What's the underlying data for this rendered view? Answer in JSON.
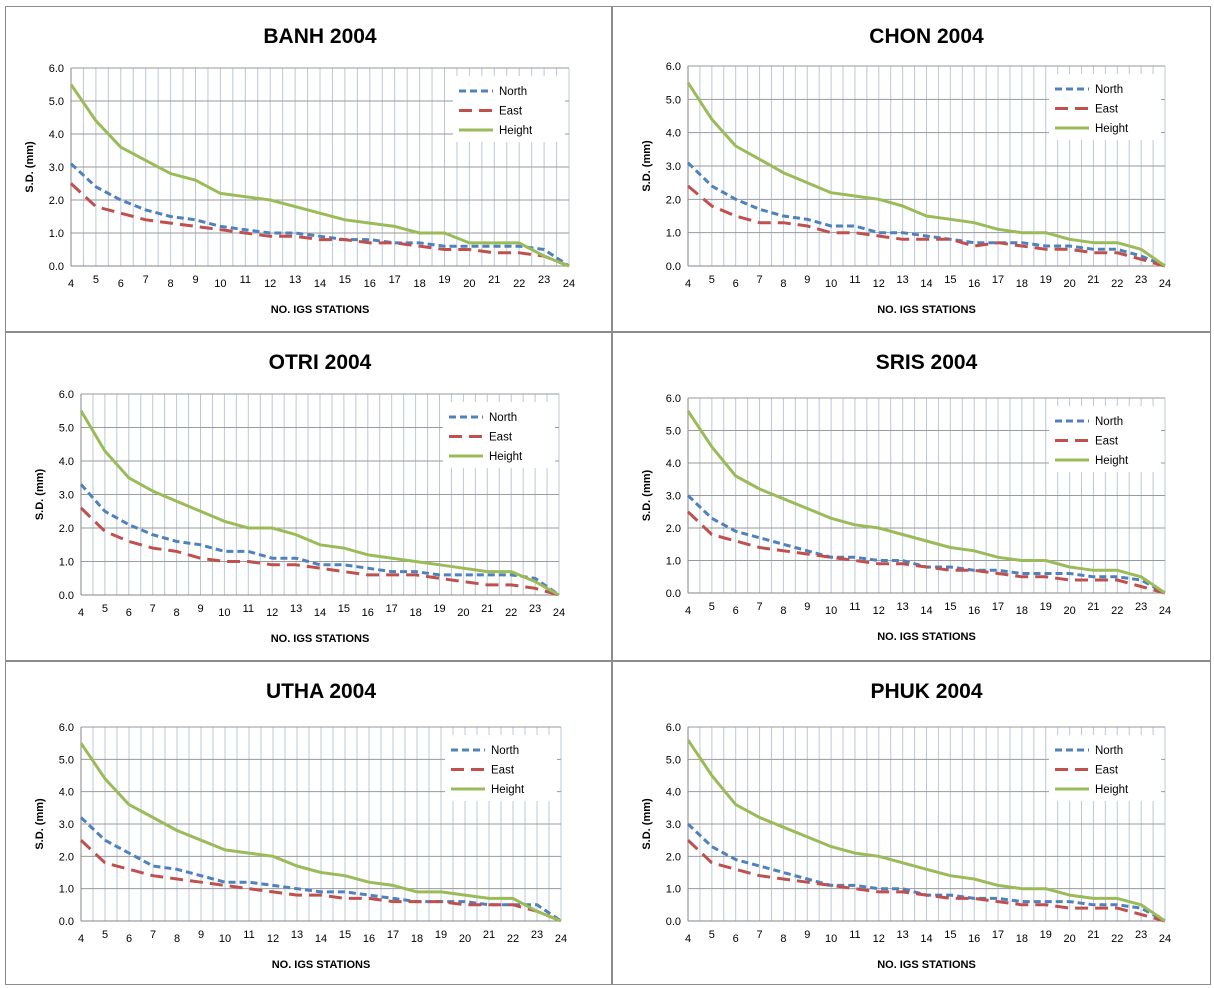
{
  "charts": [
    {
      "title": "BANH  2004",
      "xlabel": "NO. IGS STATIONS",
      "ylabel": "S.D. (mm)"
    },
    {
      "title": "CHON  2004",
      "xlabel": "NO. IGS STATIONS",
      "ylabel": "S.D. (mm)"
    },
    {
      "title": "OTRI 2004",
      "xlabel": "NO. IGS STATIONS",
      "ylabel": "S.D. (mm)"
    },
    {
      "title": "SRIS 2004",
      "xlabel": "NO. IGS STATIONS",
      "ylabel": "S.D. (mm)"
    },
    {
      "title": "UTHA 2004",
      "xlabel": "NO. IGS STATIONS",
      "ylabel": "S.D. (mm)"
    },
    {
      "title": "PHUK 2004",
      "xlabel": "NO. IGS STATIONS",
      "ylabel": "S.D. (mm)"
    }
  ],
  "colors": {
    "North": "#4f81bd",
    "East": "#c0504d",
    "Height": "#9bbb59",
    "grid": "#b8c8dc",
    "axis": "#868686"
  },
  "chart_data": [
    {
      "type": "line",
      "title": "BANH  2004",
      "xlabel": "NO. IGS STATIONS",
      "ylabel": "S.D. (mm)",
      "x": [
        4,
        5,
        6,
        7,
        8,
        9,
        10,
        11,
        12,
        13,
        14,
        15,
        16,
        17,
        18,
        19,
        20,
        21,
        22,
        23,
        24
      ],
      "ylim": [
        0,
        6
      ],
      "yticks": [
        "0.0",
        "1.0",
        "2.0",
        "3.0",
        "4.0",
        "5.0",
        "6.0"
      ],
      "legend": "top-right",
      "series": [
        {
          "name": "North",
          "style": "dashed",
          "values": [
            3.1,
            2.4,
            2.0,
            1.7,
            1.5,
            1.4,
            1.2,
            1.1,
            1.0,
            1.0,
            0.9,
            0.8,
            0.8,
            0.7,
            0.7,
            0.6,
            0.6,
            0.6,
            0.6,
            0.5,
            0.0
          ]
        },
        {
          "name": "East",
          "style": "long-dashed",
          "values": [
            2.5,
            1.8,
            1.6,
            1.4,
            1.3,
            1.2,
            1.1,
            1.0,
            0.9,
            0.9,
            0.8,
            0.8,
            0.7,
            0.7,
            0.6,
            0.5,
            0.5,
            0.4,
            0.4,
            0.3,
            0.0
          ]
        },
        {
          "name": "Height",
          "style": "solid",
          "values": [
            5.5,
            4.4,
            3.6,
            3.2,
            2.8,
            2.6,
            2.2,
            2.1,
            2.0,
            1.8,
            1.6,
            1.4,
            1.3,
            1.2,
            1.0,
            1.0,
            0.7,
            0.7,
            0.7,
            0.3,
            0.0
          ]
        }
      ]
    },
    {
      "type": "line",
      "title": "CHON  2004",
      "xlabel": "NO. IGS STATIONS",
      "ylabel": "S.D. (mm)",
      "x": [
        4,
        5,
        6,
        7,
        8,
        9,
        10,
        11,
        12,
        13,
        14,
        15,
        16,
        17,
        18,
        19,
        20,
        21,
        22,
        23,
        24
      ],
      "ylim": [
        0,
        6
      ],
      "yticks": [
        "0.0",
        "1.0",
        "2.0",
        "3.0",
        "4.0",
        "5.0",
        "6.0"
      ],
      "legend": "top-right",
      "series": [
        {
          "name": "North",
          "style": "dashed",
          "values": [
            3.1,
            2.4,
            2.0,
            1.7,
            1.5,
            1.4,
            1.2,
            1.2,
            1.0,
            1.0,
            0.9,
            0.8,
            0.7,
            0.7,
            0.7,
            0.6,
            0.6,
            0.5,
            0.5,
            0.3,
            0.0
          ]
        },
        {
          "name": "East",
          "style": "long-dashed",
          "values": [
            2.4,
            1.8,
            1.5,
            1.3,
            1.3,
            1.2,
            1.0,
            1.0,
            0.9,
            0.8,
            0.8,
            0.8,
            0.6,
            0.7,
            0.6,
            0.5,
            0.5,
            0.4,
            0.4,
            0.2,
            0.0
          ]
        },
        {
          "name": "Height",
          "style": "solid",
          "values": [
            5.5,
            4.4,
            3.6,
            3.2,
            2.8,
            2.5,
            2.2,
            2.1,
            2.0,
            1.8,
            1.5,
            1.4,
            1.3,
            1.1,
            1.0,
            1.0,
            0.8,
            0.7,
            0.7,
            0.5,
            0.0
          ]
        }
      ]
    },
    {
      "type": "line",
      "title": "OTRI 2004",
      "xlabel": "NO. IGS STATIONS",
      "ylabel": "S.D. (mm)",
      "x": [
        4,
        5,
        6,
        7,
        8,
        9,
        10,
        11,
        12,
        13,
        14,
        15,
        16,
        17,
        18,
        19,
        20,
        21,
        22,
        23,
        24
      ],
      "ylim": [
        0,
        6
      ],
      "yticks": [
        "0.0",
        "1.0",
        "2.0",
        "3.0",
        "4.0",
        "5.0",
        "6.0"
      ],
      "legend": "top-right",
      "series": [
        {
          "name": "North",
          "style": "dashed",
          "values": [
            3.3,
            2.5,
            2.1,
            1.8,
            1.6,
            1.5,
            1.3,
            1.3,
            1.1,
            1.1,
            0.9,
            0.9,
            0.8,
            0.7,
            0.7,
            0.6,
            0.6,
            0.6,
            0.6,
            0.5,
            0.0
          ]
        },
        {
          "name": "East",
          "style": "long-dashed",
          "values": [
            2.6,
            1.9,
            1.6,
            1.4,
            1.3,
            1.1,
            1.0,
            1.0,
            0.9,
            0.9,
            0.8,
            0.7,
            0.6,
            0.6,
            0.6,
            0.5,
            0.4,
            0.3,
            0.3,
            0.2,
            0.0
          ]
        },
        {
          "name": "Height",
          "style": "solid",
          "values": [
            5.5,
            4.3,
            3.5,
            3.1,
            2.8,
            2.5,
            2.2,
            2.0,
            2.0,
            1.8,
            1.5,
            1.4,
            1.2,
            1.1,
            1.0,
            0.9,
            0.8,
            0.7,
            0.7,
            0.4,
            0.0
          ]
        }
      ]
    },
    {
      "type": "line",
      "title": "SRIS 2004",
      "xlabel": "NO. IGS STATIONS",
      "ylabel": "S.D. (mm)",
      "x": [
        4,
        5,
        6,
        7,
        8,
        9,
        10,
        11,
        12,
        13,
        14,
        15,
        16,
        17,
        18,
        19,
        20,
        21,
        22,
        23,
        24
      ],
      "ylim": [
        0,
        6
      ],
      "yticks": [
        "0.0",
        "1.0",
        "2.0",
        "3.0",
        "4.0",
        "5.0",
        "6.0"
      ],
      "legend": "top-right",
      "series": [
        {
          "name": "North",
          "style": "dashed",
          "values": [
            3.0,
            2.3,
            1.9,
            1.7,
            1.5,
            1.3,
            1.1,
            1.1,
            1.0,
            1.0,
            0.8,
            0.8,
            0.7,
            0.7,
            0.6,
            0.6,
            0.6,
            0.5,
            0.5,
            0.4,
            0.0
          ]
        },
        {
          "name": "East",
          "style": "long-dashed",
          "values": [
            2.5,
            1.8,
            1.6,
            1.4,
            1.3,
            1.2,
            1.1,
            1.0,
            0.9,
            0.9,
            0.8,
            0.7,
            0.7,
            0.6,
            0.5,
            0.5,
            0.4,
            0.4,
            0.4,
            0.2,
            0.0
          ]
        },
        {
          "name": "Height",
          "style": "solid",
          "values": [
            5.6,
            4.5,
            3.6,
            3.2,
            2.9,
            2.6,
            2.3,
            2.1,
            2.0,
            1.8,
            1.6,
            1.4,
            1.3,
            1.1,
            1.0,
            1.0,
            0.8,
            0.7,
            0.7,
            0.5,
            0.0
          ]
        }
      ]
    },
    {
      "type": "line",
      "title": "UTHA 2004",
      "xlabel": "NO. IGS STATIONS",
      "ylabel": "S.D. (mm)",
      "x": [
        4,
        5,
        6,
        7,
        8,
        9,
        10,
        11,
        12,
        13,
        14,
        15,
        16,
        17,
        18,
        19,
        20,
        21,
        22,
        23,
        24
      ],
      "ylim": [
        0,
        6
      ],
      "yticks": [
        "0.0",
        "1.0",
        "2.0",
        "3.0",
        "4.0",
        "5.0",
        "6.0"
      ],
      "legend": "top-right",
      "series": [
        {
          "name": "North",
          "style": "dashed",
          "values": [
            3.2,
            2.5,
            2.1,
            1.7,
            1.6,
            1.4,
            1.2,
            1.2,
            1.1,
            1.0,
            0.9,
            0.9,
            0.8,
            0.7,
            0.6,
            0.6,
            0.6,
            0.5,
            0.5,
            0.5,
            0.0
          ]
        },
        {
          "name": "East",
          "style": "long-dashed",
          "values": [
            2.5,
            1.8,
            1.6,
            1.4,
            1.3,
            1.2,
            1.1,
            1.0,
            0.9,
            0.8,
            0.8,
            0.7,
            0.7,
            0.6,
            0.6,
            0.6,
            0.5,
            0.5,
            0.5,
            0.3,
            0.0
          ]
        },
        {
          "name": "Height",
          "style": "solid",
          "values": [
            5.5,
            4.4,
            3.6,
            3.2,
            2.8,
            2.5,
            2.2,
            2.1,
            2.0,
            1.7,
            1.5,
            1.4,
            1.2,
            1.1,
            0.9,
            0.9,
            0.8,
            0.7,
            0.7,
            0.3,
            0.0
          ]
        }
      ]
    },
    {
      "type": "line",
      "title": "PHUK 2004",
      "xlabel": "NO. IGS STATIONS",
      "ylabel": "S.D. (mm)",
      "x": [
        4,
        5,
        6,
        7,
        8,
        9,
        10,
        11,
        12,
        13,
        14,
        15,
        16,
        17,
        18,
        19,
        20,
        21,
        22,
        23,
        24
      ],
      "ylim": [
        0,
        6
      ],
      "yticks": [
        "0.0",
        "1.0",
        "2.0",
        "3.0",
        "4.0",
        "5.0",
        "6.0"
      ],
      "legend": "top-right",
      "series": [
        {
          "name": "North",
          "style": "dashed",
          "values": [
            3.0,
            2.3,
            1.9,
            1.7,
            1.5,
            1.3,
            1.1,
            1.1,
            1.0,
            1.0,
            0.8,
            0.8,
            0.7,
            0.7,
            0.6,
            0.6,
            0.6,
            0.5,
            0.5,
            0.4,
            0.0
          ]
        },
        {
          "name": "East",
          "style": "long-dashed",
          "values": [
            2.5,
            1.8,
            1.6,
            1.4,
            1.3,
            1.2,
            1.1,
            1.0,
            0.9,
            0.9,
            0.8,
            0.7,
            0.7,
            0.6,
            0.5,
            0.5,
            0.4,
            0.4,
            0.4,
            0.2,
            0.0
          ]
        },
        {
          "name": "Height",
          "style": "solid",
          "values": [
            5.6,
            4.5,
            3.6,
            3.2,
            2.9,
            2.6,
            2.3,
            2.1,
            2.0,
            1.8,
            1.6,
            1.4,
            1.3,
            1.1,
            1.0,
            1.0,
            0.8,
            0.7,
            0.7,
            0.5,
            0.0
          ]
        }
      ]
    }
  ]
}
